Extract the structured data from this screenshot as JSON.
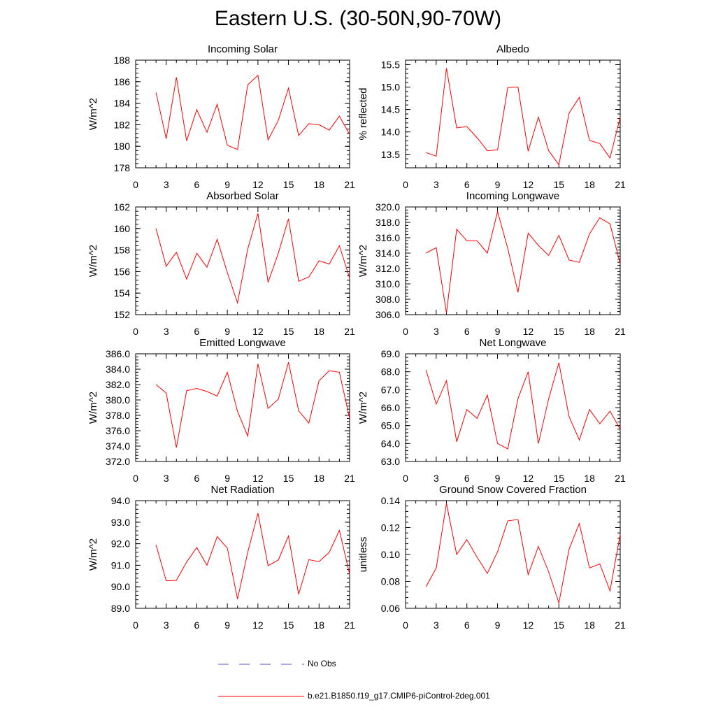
{
  "figure": {
    "title": "Eastern U.S. (30-50N,90-70W)"
  },
  "legend": {
    "obs_label": "No Obs",
    "obs_color": "#5555cc",
    "model_label": "b.e21.B1850.f19_g17.CMIP6-piControl-2deg.001",
    "model_color": "#ff0000"
  },
  "chart_data": [
    {
      "type": "line",
      "title": "Incoming Solar",
      "ylabel": "W/m^2",
      "xlim": [
        0,
        21
      ],
      "ylim": [
        178,
        188
      ],
      "xticks": [
        "0",
        "3",
        "6",
        "9",
        "12",
        "15",
        "18",
        "21"
      ],
      "yticks": [
        "178",
        "180",
        "182",
        "184",
        "186",
        "188"
      ],
      "x": [
        2,
        3,
        4,
        5,
        6,
        7,
        8,
        9,
        10,
        11,
        12,
        13,
        14,
        15,
        16,
        17,
        18,
        19,
        20,
        21
      ],
      "series": [
        {
          "values": [
            185.0,
            180.7,
            186.4,
            180.5,
            183.4,
            181.3,
            183.9,
            180.1,
            179.7,
            185.7,
            186.6,
            180.6,
            182.4,
            185.4,
            181.0,
            182.1,
            182.0,
            181.5,
            182.8,
            181.1
          ]
        }
      ]
    },
    {
      "type": "line",
      "title": "Albedo",
      "ylabel": "% reflected",
      "xlim": [
        0,
        21
      ],
      "ylim": [
        13.2,
        15.6
      ],
      "xticks": [
        "0",
        "3",
        "6",
        "9",
        "12",
        "15",
        "18",
        "21"
      ],
      "yticks": [
        "13.5",
        "14.0",
        "14.5",
        "15.0",
        "15.5"
      ],
      "x": [
        2,
        3,
        4,
        5,
        6,
        7,
        8,
        9,
        10,
        11,
        12,
        13,
        14,
        15,
        16,
        17,
        18,
        19,
        20,
        21
      ],
      "series": [
        {
          "values": [
            13.54,
            13.46,
            15.42,
            14.09,
            14.12,
            13.87,
            13.58,
            13.6,
            14.99,
            15.0,
            13.57,
            14.33,
            13.58,
            13.27,
            14.42,
            14.77,
            13.81,
            13.74,
            13.42,
            14.33
          ]
        }
      ]
    },
    {
      "type": "line",
      "title": "Absorbed Solar",
      "ylabel": "W/m^2",
      "xlim": [
        0,
        21
      ],
      "ylim": [
        152,
        162
      ],
      "xticks": [
        "0",
        "3",
        "6",
        "9",
        "12",
        "15",
        "18",
        "21"
      ],
      "yticks": [
        "152",
        "154",
        "156",
        "158",
        "160",
        "162"
      ],
      "x": [
        2,
        3,
        4,
        5,
        6,
        7,
        8,
        9,
        10,
        11,
        12,
        13,
        14,
        15,
        16,
        17,
        18,
        19,
        20,
        21
      ],
      "series": [
        {
          "values": [
            160.0,
            156.5,
            157.8,
            155.3,
            157.7,
            156.4,
            159.0,
            155.9,
            153.1,
            158.1,
            161.4,
            155.0,
            157.7,
            160.9,
            155.1,
            155.5,
            157.0,
            156.7,
            158.4,
            155.4
          ]
        }
      ]
    },
    {
      "type": "line",
      "title": "Incoming Longwave",
      "ylabel": "W/m^2",
      "xlim": [
        0,
        21
      ],
      "ylim": [
        306,
        320
      ],
      "xticks": [
        "0",
        "3",
        "6",
        "9",
        "12",
        "15",
        "18",
        "21"
      ],
      "yticks": [
        "306.0",
        "308.0",
        "310.0",
        "312.0",
        "314.0",
        "316.0",
        "318.0",
        "320.0"
      ],
      "x": [
        2,
        3,
        4,
        5,
        6,
        7,
        8,
        9,
        10,
        11,
        12,
        13,
        14,
        15,
        16,
        17,
        18,
        19,
        20,
        21
      ],
      "series": [
        {
          "values": [
            314.0,
            314.7,
            306.2,
            317.1,
            315.6,
            315.6,
            314.0,
            319.4,
            314.6,
            308.9,
            316.6,
            315.0,
            313.7,
            316.3,
            313.1,
            312.8,
            316.5,
            318.6,
            317.8,
            312.6
          ]
        }
      ]
    },
    {
      "type": "line",
      "title": "Emitted Longwave",
      "ylabel": "W/m^2",
      "xlim": [
        0,
        21
      ],
      "ylim": [
        372,
        386
      ],
      "xticks": [
        "0",
        "3",
        "6",
        "9",
        "12",
        "15",
        "18",
        "21"
      ],
      "yticks": [
        "372.0",
        "374.0",
        "376.0",
        "378.0",
        "380.0",
        "382.0",
        "384.0",
        "386.0"
      ],
      "x": [
        2,
        3,
        4,
        5,
        6,
        7,
        8,
        9,
        10,
        11,
        12,
        13,
        14,
        15,
        16,
        17,
        18,
        19,
        20,
        21
      ],
      "series": [
        {
          "values": [
            382.0,
            380.9,
            373.8,
            381.2,
            381.5,
            381.1,
            380.5,
            383.6,
            378.5,
            375.3,
            384.7,
            378.9,
            380.1,
            384.9,
            378.6,
            377.0,
            382.5,
            383.8,
            383.6,
            377.6
          ]
        }
      ]
    },
    {
      "type": "line",
      "title": "Net Longwave",
      "ylabel": "W/m^2",
      "xlim": [
        0,
        21
      ],
      "ylim": [
        63,
        69
      ],
      "xticks": [
        "0",
        "3",
        "6",
        "9",
        "12",
        "15",
        "18",
        "21"
      ],
      "yticks": [
        "63.0",
        "64.0",
        "65.0",
        "66.0",
        "67.0",
        "68.0",
        "69.0"
      ],
      "x": [
        2,
        3,
        4,
        5,
        6,
        7,
        8,
        9,
        10,
        11,
        12,
        13,
        14,
        15,
        16,
        17,
        18,
        19,
        20,
        21
      ],
      "series": [
        {
          "values": [
            68.1,
            66.2,
            67.5,
            64.1,
            65.9,
            65.4,
            66.7,
            64.0,
            63.7,
            66.5,
            68.0,
            64.0,
            66.5,
            68.5,
            65.5,
            64.2,
            65.9,
            65.1,
            65.8,
            64.8
          ]
        }
      ]
    },
    {
      "type": "line",
      "title": "Net Radiation",
      "ylabel": "W/m^2",
      "xlim": [
        0,
        21
      ],
      "ylim": [
        89,
        94
      ],
      "xticks": [
        "0",
        "3",
        "6",
        "9",
        "12",
        "15",
        "18",
        "21"
      ],
      "yticks": [
        "89.0",
        "90.0",
        "91.0",
        "92.0",
        "93.0",
        "94.0"
      ],
      "x": [
        2,
        3,
        4,
        5,
        6,
        7,
        8,
        9,
        10,
        11,
        12,
        13,
        14,
        15,
        16,
        17,
        18,
        19,
        20,
        21
      ],
      "series": [
        {
          "values": [
            91.95,
            90.28,
            90.3,
            91.15,
            91.82,
            91.0,
            92.33,
            91.8,
            89.43,
            91.6,
            93.42,
            90.98,
            91.24,
            92.36,
            89.65,
            91.26,
            91.17,
            91.6,
            92.62,
            90.58
          ]
        }
      ]
    },
    {
      "type": "line",
      "title": "Ground Snow Covered Fraction",
      "ylabel": "unitless",
      "xlim": [
        0,
        21
      ],
      "ylim": [
        0.06,
        0.14
      ],
      "xticks": [
        "0",
        "3",
        "6",
        "9",
        "12",
        "15",
        "18",
        "21"
      ],
      "yticks": [
        "0.06",
        "0.08",
        "0.10",
        "0.12",
        "0.14"
      ],
      "x": [
        2,
        3,
        4,
        5,
        6,
        7,
        8,
        9,
        10,
        11,
        12,
        13,
        14,
        15,
        16,
        17,
        18,
        19,
        20,
        21
      ],
      "series": [
        {
          "values": [
            0.076,
            0.09,
            0.138,
            0.1,
            0.111,
            0.098,
            0.086,
            0.102,
            0.125,
            0.126,
            0.085,
            0.106,
            0.087,
            0.064,
            0.104,
            0.123,
            0.09,
            0.093,
            0.073,
            0.115
          ]
        }
      ]
    }
  ]
}
